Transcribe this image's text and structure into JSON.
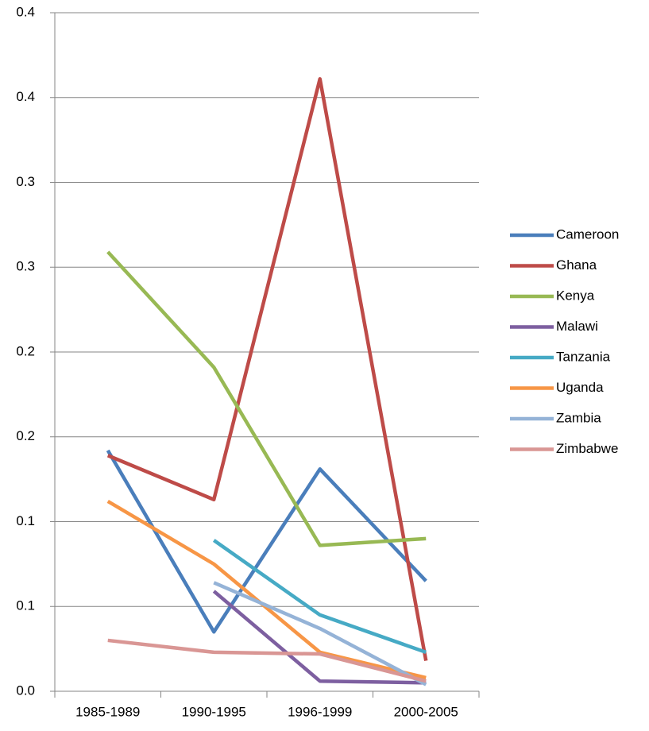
{
  "chart_data": {
    "type": "line",
    "categories": [
      "1985-1989",
      "1990-1995",
      "1996-1999",
      "2000-2005"
    ],
    "series": [
      {
        "name": "Cameroon",
        "color": "#4a7ebb",
        "values": [
          0.142,
          0.035,
          0.131,
          0.065
        ]
      },
      {
        "name": "Ghana",
        "color": "#be4b48",
        "values": [
          0.139,
          0.113,
          0.361,
          0.018
        ]
      },
      {
        "name": "Kenya",
        "color": "#98b954",
        "values": [
          0.259,
          0.191,
          0.086,
          0.09
        ]
      },
      {
        "name": "Malawi",
        "color": "#7d5fa0",
        "values": [
          null,
          0.059,
          0.006,
          0.005
        ]
      },
      {
        "name": "Tanzania",
        "color": "#46aac5",
        "values": [
          null,
          0.089,
          0.045,
          0.023
        ]
      },
      {
        "name": "Uganda",
        "color": "#f79646",
        "values": [
          0.112,
          0.075,
          0.023,
          0.008
        ]
      },
      {
        "name": "Zambia",
        "color": "#95b3d7",
        "values": [
          null,
          0.064,
          0.037,
          0.004
        ]
      },
      {
        "name": "Zimbabwe",
        "color": "#d99694",
        "values": [
          0.03,
          0.023,
          0.022,
          0.006
        ]
      }
    ],
    "ylim": [
      0,
      0.4
    ],
    "yticks": [
      {
        "value": 0,
        "label": "0.0"
      },
      {
        "value": 0.05,
        "label": "0.1"
      },
      0.1,
      {
        "value": 0.15,
        "label": "0.2"
      },
      0.2,
      {
        "value": 0.25,
        "label": "0.3"
      },
      0.3,
      {
        "value": 0.35,
        "label": "0.4"
      },
      0.4
    ],
    "grid": true,
    "legend": "right"
  }
}
